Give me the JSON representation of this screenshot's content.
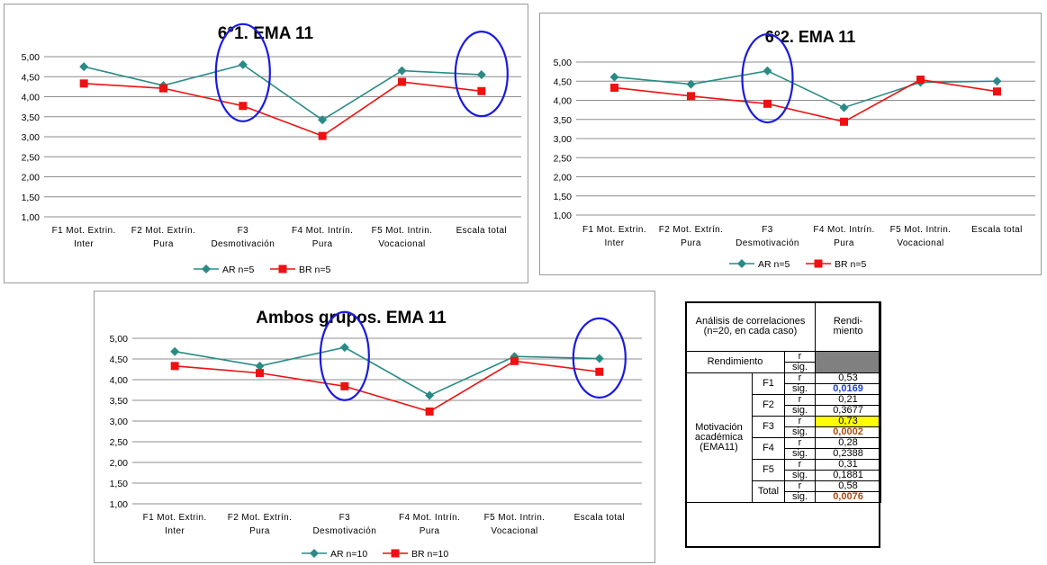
{
  "chart_data": [
    {
      "type": "line",
      "title": "6°1. EMA 11",
      "categories": [
        [
          "F1 Mot. Extrin.",
          "Inter"
        ],
        [
          "F2 Mot. Extrín.",
          "Pura"
        ],
        [
          "F3",
          "Desmotivación"
        ],
        [
          "F4 Mot. Intrín.",
          "Pura"
        ],
        [
          "F5 Mot. Intrin.",
          "Vocacional"
        ],
        [
          "Escala total"
        ]
      ],
      "ylim": [
        1.0,
        5.0
      ],
      "yticks": [
        "1,00",
        "1,50",
        "2,00",
        "2,50",
        "3,00",
        "3,50",
        "4,00",
        "4,50",
        "5,00"
      ],
      "grid": true,
      "legend_position": "bottom",
      "series": [
        {
          "name": "AR n=5",
          "color": "#2a8a85",
          "marker": "diamond",
          "values": [
            4.75,
            4.28,
            4.8,
            3.42,
            4.65,
            4.55
          ]
        },
        {
          "name": "BR n=5",
          "color": "#ee1111",
          "marker": "square",
          "values": [
            4.33,
            4.21,
            3.77,
            3.02,
            4.37,
            4.14
          ]
        }
      ],
      "highlight_circles": [
        "F3 Desmotivación",
        "Escala total"
      ]
    },
    {
      "type": "line",
      "title": "6°2. EMA 11",
      "categories": [
        [
          "F1 Mot. Extrin.",
          "Inter"
        ],
        [
          "F2 Mot. Extrín.",
          "Pura"
        ],
        [
          "F3",
          "Desmotivación"
        ],
        [
          "F4 Mot. Intrín.",
          "Pura"
        ],
        [
          "F5 Mot. Intrin.",
          "Vocacional"
        ],
        [
          "Escala total"
        ]
      ],
      "ylim": [
        1.0,
        5.0
      ],
      "yticks": [
        "1,00",
        "1,50",
        "2,00",
        "2,50",
        "3,00",
        "3,50",
        "4,00",
        "4,50",
        "5,00"
      ],
      "grid": true,
      "legend_position": "bottom",
      "series": [
        {
          "name": "AR n=5",
          "color": "#2a8a85",
          "marker": "diamond",
          "values": [
            4.61,
            4.42,
            4.77,
            3.81,
            4.47,
            4.5
          ]
        },
        {
          "name": "BR n=5",
          "color": "#ee1111",
          "marker": "square",
          "values": [
            4.33,
            4.11,
            3.91,
            3.44,
            4.54,
            4.23
          ]
        }
      ],
      "highlight_circles": [
        "F3 Desmotivación"
      ]
    },
    {
      "type": "line",
      "title": "Ambos grupos. EMA 11",
      "categories": [
        [
          "F1 Mot. Extrin.",
          "Inter"
        ],
        [
          "F2 Mot. Extrín.",
          "Pura"
        ],
        [
          "F3",
          "Desmotivación"
        ],
        [
          "F4 Mot. Intrín.",
          "Pura"
        ],
        [
          "F5 Mot. Intrin.",
          "Vocacional"
        ],
        [
          "Escala total"
        ]
      ],
      "ylim": [
        1.0,
        5.0
      ],
      "yticks": [
        "1,00",
        "1,50",
        "2,00",
        "2,50",
        "3,00",
        "3,50",
        "4,00",
        "4,50",
        "5,00"
      ],
      "grid": true,
      "legend_position": "bottom",
      "series": [
        {
          "name": "AR n=10",
          "color": "#2a8a85",
          "marker": "diamond",
          "values": [
            4.68,
            4.33,
            4.78,
            3.62,
            4.56,
            4.51
          ]
        },
        {
          "name": "BR n=10",
          "color": "#ee1111",
          "marker": "square",
          "values": [
            4.33,
            4.16,
            3.84,
            3.23,
            4.45,
            4.19
          ]
        }
      ],
      "highlight_circles": [
        "F3 Desmotivación",
        "Escala total"
      ]
    }
  ],
  "table": {
    "header_left": "Análisis de correlaciones (n=20, en cada caso)",
    "header_right": "Rendi-miento",
    "rendimiento_label": "Rendimiento",
    "group_label": "Motivación académica (EMA11)",
    "r_label": "r",
    "sig_label": "sig.",
    "rows": [
      {
        "factor": "F1",
        "r": "0,53",
        "sig": "0,0169"
      },
      {
        "factor": "F2",
        "r": "0,21",
        "sig": "0,3677"
      },
      {
        "factor": "F3",
        "r": "0,73",
        "sig": "0,0002"
      },
      {
        "factor": "F4",
        "r": "0,28",
        "sig": "0,2388"
      },
      {
        "factor": "F5",
        "r": "0,31",
        "sig": "0,1881"
      },
      {
        "factor": "Total",
        "r": "0,58",
        "sig": "0,0076"
      }
    ],
    "colors": {
      "gray_cell": "#808080",
      "f1_sig": "#1f3fd0",
      "f3_highlight": "#ffff00",
      "f3_sig": "#b04a10",
      "total_sig": "#b04a10"
    }
  }
}
